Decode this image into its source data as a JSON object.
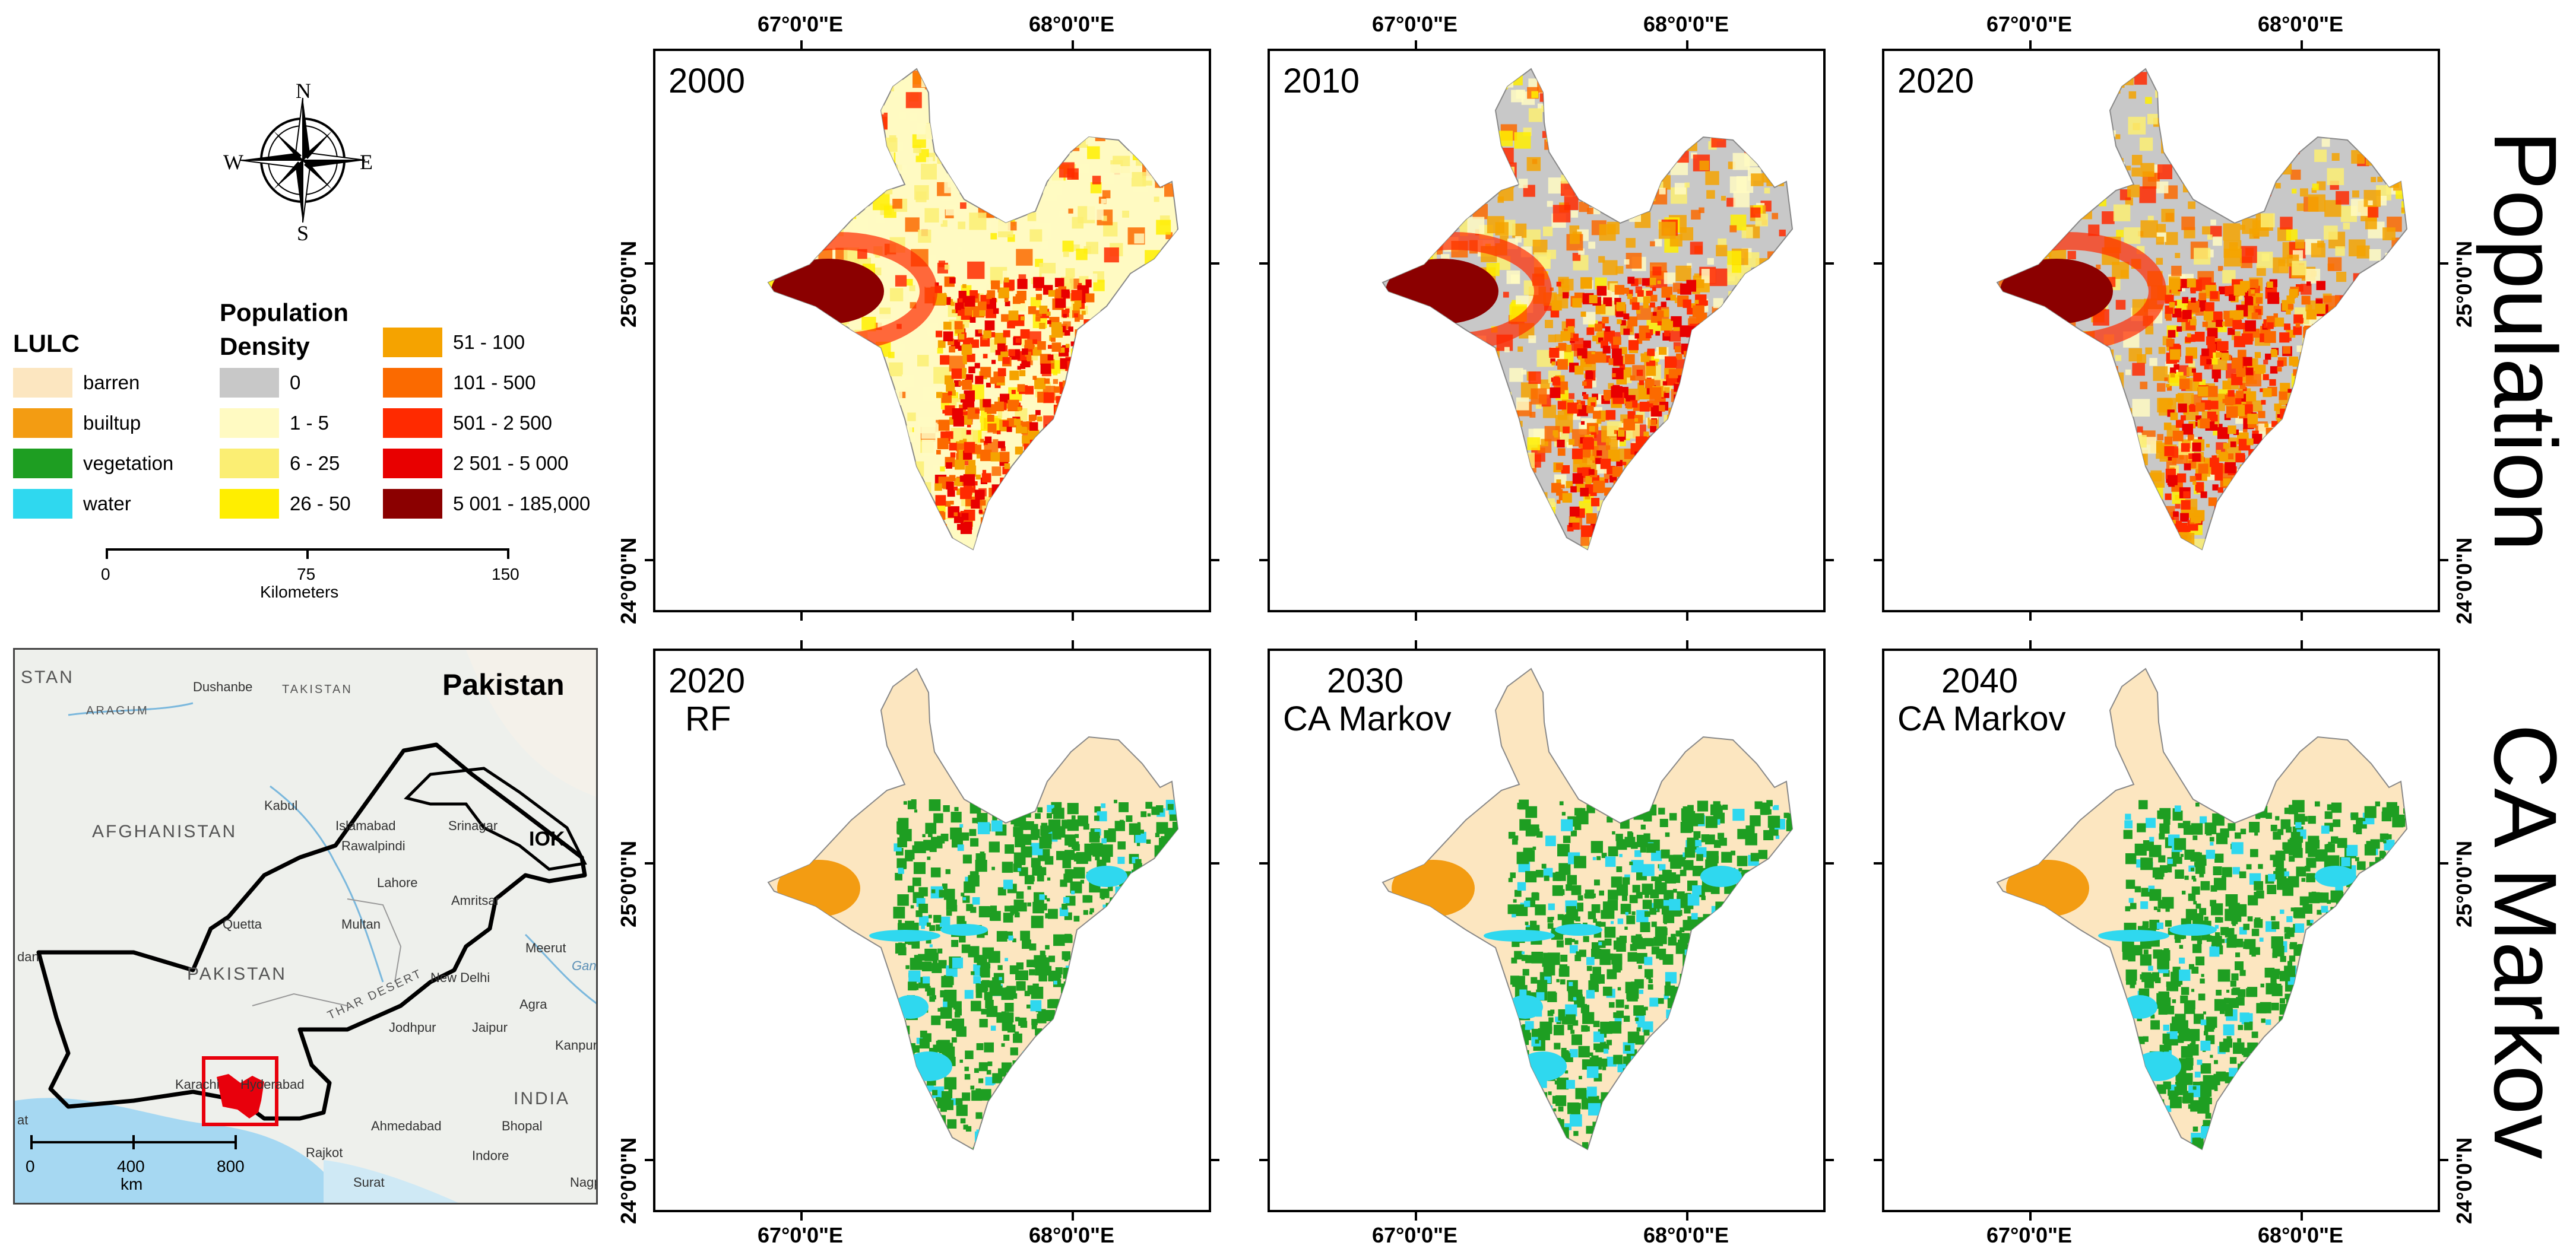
{
  "compass": {
    "n": "N",
    "s": "S",
    "e": "E",
    "w": "W"
  },
  "legend": {
    "lulc_title": "LULC",
    "lulc_items": [
      {
        "label": "barren",
        "color": "#fce6c0"
      },
      {
        "label": "builtup",
        "color": "#f39c12"
      },
      {
        "label": "vegetation",
        "color": "#1e9e22"
      },
      {
        "label": "water",
        "color": "#2fd8ef"
      }
    ],
    "pop_title_line1": "Population",
    "pop_title_line2": "Density",
    "pop_items_col1": [
      {
        "label": "0",
        "color": "#c8c8c8"
      },
      {
        "label": "1 - 5",
        "color": "#fffac2"
      },
      {
        "label": "6 - 25",
        "color": "#fbee73"
      },
      {
        "label": "26 - 50",
        "color": "#ffee00"
      }
    ],
    "pop_items_col2": [
      {
        "label": "51 - 100",
        "color": "#f5a300"
      },
      {
        "label": "101 - 500",
        "color": "#fb6a00"
      },
      {
        "label": "501 - 2 500",
        "color": "#ff2a00"
      },
      {
        "label": "2 501 - 5 000",
        "color": "#e80000"
      },
      {
        "label": "5 001 - 185,000",
        "color": "#8b0000"
      }
    ]
  },
  "scalebar": {
    "ticks": [
      "0",
      "75",
      "150"
    ],
    "unit": "Kilometers"
  },
  "inset": {
    "title": "Pakistan",
    "region_label": "IOK",
    "scale_ticks": [
      "0",
      "400",
      "800"
    ],
    "scale_unit": "km",
    "countries": [
      "AFGHANISTAN",
      "PAKISTAN",
      "INDIA",
      "STAN",
      "ARAGUM",
      "TAKISTAN",
      "THAR DESERT"
    ],
    "cities": [
      "Dushanbe",
      "Kabul",
      "Islamabad",
      "Rawalpindi",
      "Srinagar",
      "Lahore",
      "Amritsar",
      "Quetta",
      "Multan",
      "Meerut",
      "New Delhi",
      "Agra",
      "Jodhpur",
      "Jaipur",
      "Kanpur",
      "Karachi",
      "Hyderabad",
      "Ahmedabad",
      "Bhopal",
      "Rajkot",
      "Indore",
      "Surat",
      "Nagpur",
      "dan",
      "at",
      "Ganges"
    ],
    "colors": {
      "pakistan_border": "#000000",
      "study_area": "#e8000c",
      "water": "#a6d8f2"
    }
  },
  "coords": {
    "lon": [
      "67°0'0\"E",
      "68°0'0\"E"
    ],
    "lat": [
      "25°0'0\"N",
      "24°0'0\"N"
    ]
  },
  "row_titles": [
    "Population",
    "CA Markov"
  ],
  "panels": [
    {
      "label": "2000",
      "type": "pop"
    },
    {
      "label": "2010",
      "type": "pop"
    },
    {
      "label": "2020",
      "type": "pop"
    },
    {
      "label": "2020",
      "sub": "RF",
      "type": "lulc"
    },
    {
      "label": "2030",
      "sub": "CA Markov",
      "type": "lulc"
    },
    {
      "label": "2040",
      "sub": "CA Markov",
      "type": "lulc"
    }
  ]
}
